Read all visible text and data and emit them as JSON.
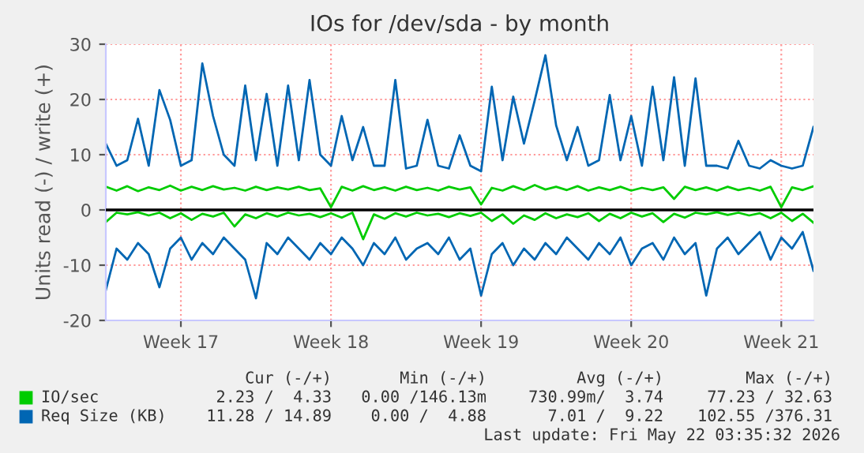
{
  "chart_data": {
    "type": "line",
    "title": "IOs for /dev/sda - by month",
    "ylabel": "Units read (-) / write (+)",
    "categories": [
      null,
      null,
      null,
      null,
      null,
      null,
      null,
      "Week 17",
      null,
      null,
      null,
      null,
      null,
      null,
      null,
      null,
      null,
      null,
      null,
      null,
      null,
      "Week 18",
      null,
      null,
      null,
      null,
      null,
      null,
      null,
      null,
      null,
      null,
      null,
      null,
      null,
      "Week 19",
      null,
      null,
      null,
      null,
      null,
      null,
      null,
      null,
      null,
      null,
      null,
      null,
      null,
      "Week 20",
      null,
      null,
      null,
      null,
      null,
      null,
      null,
      null,
      null,
      null,
      null,
      null,
      null,
      "Week 21",
      null,
      null,
      null
    ],
    "series": [
      {
        "name": "IO/sec",
        "color": "#00cc00",
        "values": [
          4.2,
          3.5,
          4.3,
          3.4,
          4.1,
          3.6,
          4.4,
          3.5,
          4.2,
          3.6,
          4.3,
          3.7,
          4.0,
          3.5,
          4.2,
          3.6,
          4.1,
          3.7,
          4.2,
          3.6,
          3.9,
          0.5,
          4.2,
          3.5,
          4.3,
          3.6,
          4.1,
          3.5,
          4.2,
          3.6,
          4.0,
          3.5,
          4.2,
          3.7,
          4.1,
          1.0,
          4.0,
          3.5,
          4.3,
          3.6,
          4.5,
          3.7,
          4.2,
          3.6,
          4.3,
          3.5,
          4.1,
          3.6,
          4.2,
          3.5,
          4.0,
          3.6,
          4.1,
          2.0,
          4.2,
          3.6,
          4.1,
          3.5,
          4.2,
          3.6,
          4.0,
          3.5,
          4.2,
          0.5,
          4.1,
          3.6,
          4.3
        ]
      },
      {
        "color": "#00cc00",
        "values": [
          -2.2,
          -0.5,
          -0.8,
          -0.4,
          -1.0,
          -0.5,
          -1.5,
          -0.6,
          -1.8,
          -0.7,
          -1.2,
          -0.5,
          -3.0,
          -0.8,
          -1.5,
          -0.6,
          -1.2,
          -0.5,
          -1.0,
          -0.7,
          -1.3,
          -0.6,
          -1.4,
          -0.5,
          -5.3,
          -0.8,
          -1.6,
          -0.6,
          -1.2,
          -0.5,
          -1.0,
          -0.7,
          -1.3,
          -0.6,
          -1.1,
          -0.5,
          -2.0,
          -0.8,
          -2.5,
          -1.0,
          -1.8,
          -0.6,
          -1.5,
          -0.8,
          -1.3,
          -0.6,
          -2.0,
          -0.7,
          -1.5,
          -0.5,
          -1.2,
          -0.6,
          -2.2,
          -0.7,
          -1.4,
          -0.5,
          -0.8,
          -0.4,
          -0.9,
          -0.5,
          -1.0,
          -0.6,
          -1.5,
          -0.5,
          -2.0,
          -0.7,
          -2.3
        ]
      },
      {
        "name": "Req Size (KB)",
        "color": "#0066b3",
        "values": [
          12,
          8,
          9,
          16.5,
          8,
          21.7,
          16.3,
          8,
          9,
          26.5,
          17,
          10,
          8,
          22.5,
          9,
          21,
          8,
          22.5,
          9,
          23.5,
          10,
          8,
          17,
          9,
          15,
          8,
          8,
          23.5,
          7.5,
          8,
          16.3,
          8,
          7.5,
          13.5,
          8,
          7,
          22.3,
          9,
          20.5,
          12,
          19.8,
          28,
          15.3,
          9,
          15,
          8,
          9,
          20.8,
          9,
          17,
          8,
          22.3,
          9,
          24,
          8,
          23.8,
          8,
          8,
          7.5,
          12.5,
          8,
          7.5,
          9,
          8,
          7.5,
          8,
          15
        ]
      },
      {
        "color": "#0066b3",
        "values": [
          -14.5,
          -7,
          -9,
          -6,
          -8,
          -14,
          -7,
          -5,
          -9,
          -6,
          -8,
          -5,
          -7,
          -9,
          -16,
          -6,
          -8,
          -5,
          -7,
          -9,
          -6,
          -8,
          -5,
          -7,
          -10,
          -6,
          -8,
          -5,
          -9,
          -7,
          -6,
          -8,
          -5,
          -9,
          -7,
          -15.5,
          -8,
          -6,
          -10,
          -7,
          -9,
          -6,
          -8,
          -5,
          -7,
          -9,
          -6,
          -8,
          -5,
          -10,
          -7,
          -6,
          -9,
          -5,
          -8,
          -6,
          -15.5,
          -7,
          -5,
          -8,
          -6,
          -4,
          -9,
          -5,
          -7,
          -4,
          -11
        ]
      }
    ],
    "ref_lines": [
      {
        "axis": "y",
        "value": 0,
        "color": "#000000"
      }
    ],
    "ylim": [
      -20,
      30
    ],
    "yticks": [
      -20,
      -10,
      0,
      10,
      20,
      30
    ],
    "grid": true,
    "legend": "bottom",
    "annotations": [
      "Cur (-/+)",
      "Min (-/+)",
      "Avg (-/+)",
      "Max (-/+)",
      "2.23 /  4.33",
      "0.00 /146.13m",
      "730.99m/  3.74",
      "77.23 / 32.63",
      "11.28 / 14.89",
      "0.00 /  4.88",
      "7.01 /  9.22",
      "102.55 /376.31",
      "Last update: Fri May 22 03:35:32 2026"
    ]
  }
}
